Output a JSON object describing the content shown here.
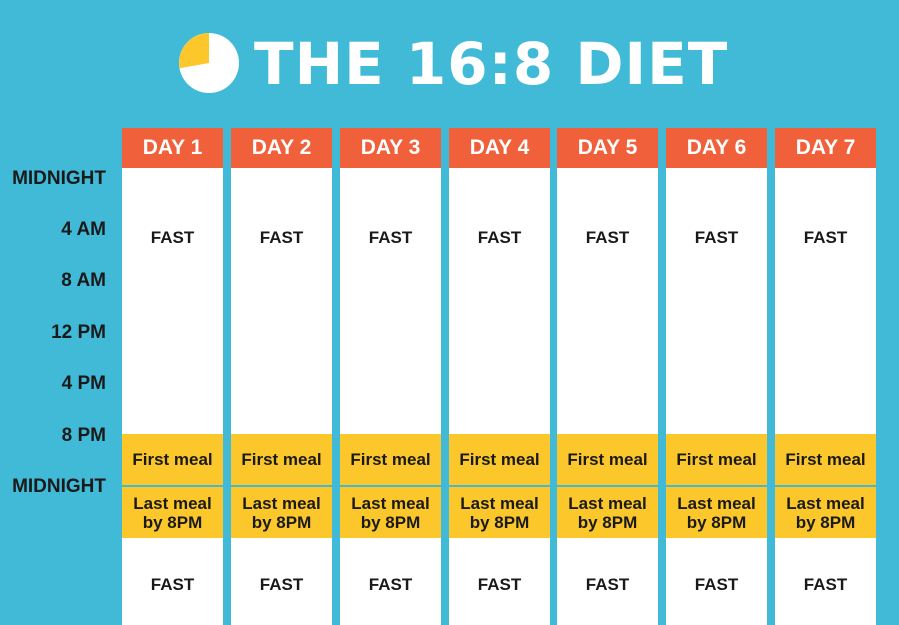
{
  "title": "THE 16:8 DIET",
  "colors": {
    "background": "#41bad8",
    "header": "#f0603a",
    "eating": "#fcc72b",
    "fast": "#ffffff"
  },
  "icon": "pie-chart-icon",
  "time_labels": [
    "MIDNIGHT",
    "4 AM",
    "8 AM",
    "12 PM",
    "4 PM",
    "8 PM",
    "MIDNIGHT"
  ],
  "days": [
    {
      "label": "DAY 1",
      "fast_am": "FAST",
      "first_meal": "First meal",
      "last_meal": "Last meal\nby 8PM",
      "fast_pm": "FAST"
    },
    {
      "label": "DAY 2",
      "fast_am": "FAST",
      "first_meal": "First meal",
      "last_meal": "Last meal\nby 8PM",
      "fast_pm": "FAST"
    },
    {
      "label": "DAY 3",
      "fast_am": "FAST",
      "first_meal": "First meal",
      "last_meal": "Last meal\nby 8PM",
      "fast_pm": "FAST"
    },
    {
      "label": "DAY 4",
      "fast_am": "FAST",
      "first_meal": "First meal",
      "last_meal": "Last meal\nby 8PM",
      "fast_pm": "FAST"
    },
    {
      "label": "DAY 5",
      "fast_am": "FAST",
      "first_meal": "First meal",
      "last_meal": "Last meal\nby 8PM",
      "fast_pm": "FAST"
    },
    {
      "label": "DAY 6",
      "fast_am": "FAST",
      "first_meal": "First meal",
      "last_meal": "Last meal\nby 8PM",
      "fast_pm": "FAST"
    },
    {
      "label": "DAY 7",
      "fast_am": "FAST",
      "first_meal": "First meal",
      "last_meal": "Last meal\nby 8PM",
      "fast_pm": "FAST"
    }
  ]
}
